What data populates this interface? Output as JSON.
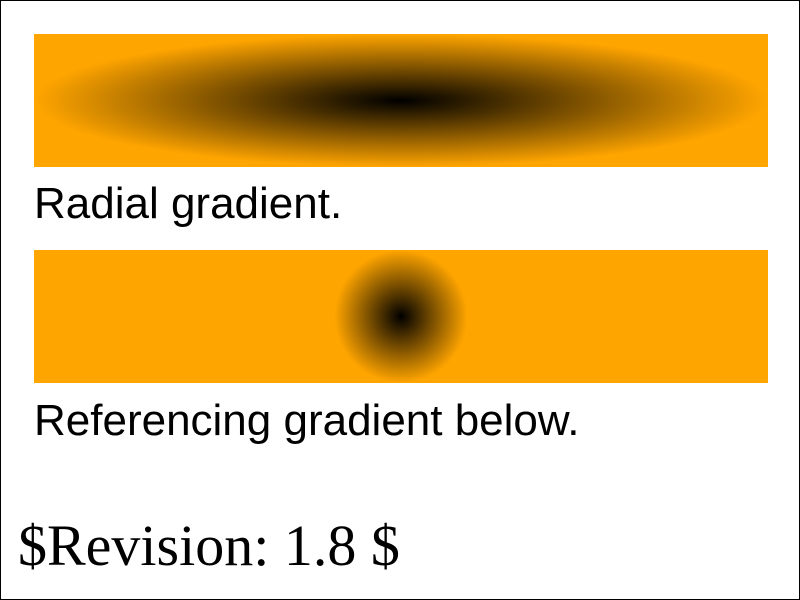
{
  "test_panels": [
    {
      "caption": "Radial gradient.",
      "gradient": {
        "kind": "radial-elliptical",
        "center_color": "#000000",
        "edge_color": "#FFA500"
      }
    },
    {
      "caption": "Referencing gradient below.",
      "gradient": {
        "kind": "radial-circular",
        "center_color": "#000000",
        "edge_color": "#FFA500"
      }
    }
  ],
  "footer": {
    "revision": "$Revision: 1.8 $"
  },
  "colors": {
    "fill": "#FFA500",
    "center": "#000000",
    "background": "#FFFFFF",
    "border": "#000000"
  }
}
